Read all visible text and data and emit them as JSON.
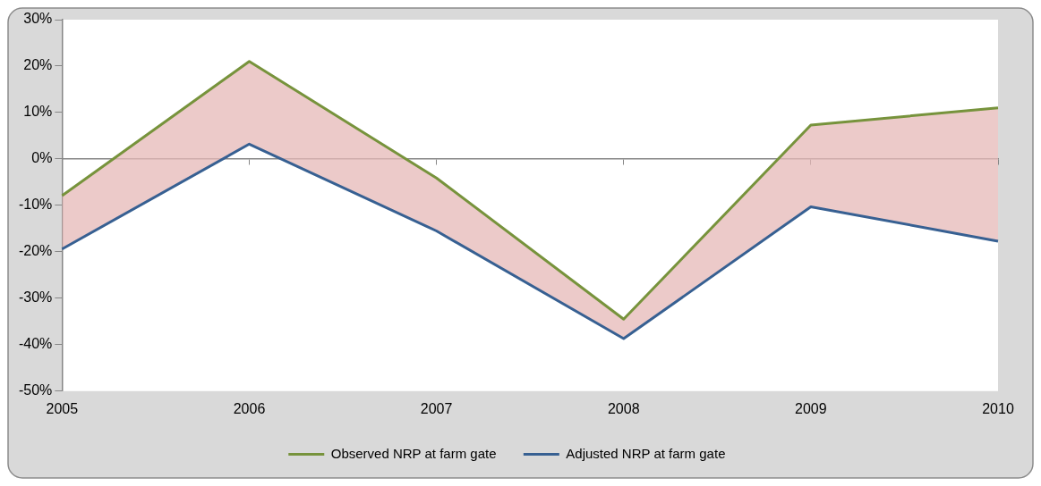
{
  "chart_data": {
    "type": "line",
    "categories": [
      "2005",
      "2006",
      "2007",
      "2008",
      "2009",
      "2010"
    ],
    "series": [
      {
        "name": "Observed NRP at farm gate",
        "color": "#77933c",
        "values": [
          -7.9,
          21.0,
          -4.1,
          -34.5,
          7.3,
          11.0
        ],
        "lower": [
          -19.4,
          3.2,
          -15.5,
          -38.7,
          -10.3,
          -17.7
        ],
        "upper": [
          -7.9,
          21.0,
          -4.1,
          -34.5,
          7.3,
          11.0
        ]
      },
      {
        "name": "Adjusted NRP at farm gate",
        "color": "#376092",
        "values": [
          -19.4,
          3.2,
          -15.5,
          -38.7,
          -10.3,
          -17.7
        ]
      }
    ],
    "ylim": [
      -50,
      30
    ],
    "yticks": [
      {
        "value": 30,
        "label": "30%"
      },
      {
        "value": 20,
        "label": "20%"
      },
      {
        "value": 10,
        "label": "10%"
      },
      {
        "value": 0,
        "label": "0%"
      },
      {
        "value": -10,
        "label": "-10%"
      },
      {
        "value": -20,
        "label": "-20%"
      },
      {
        "value": -30,
        "label": "-30%"
      },
      {
        "value": -40,
        "label": "-40%"
      },
      {
        "value": -50,
        "label": "-50%"
      }
    ],
    "legend": "bottom",
    "marker": "none",
    "line_style": "solid"
  }
}
